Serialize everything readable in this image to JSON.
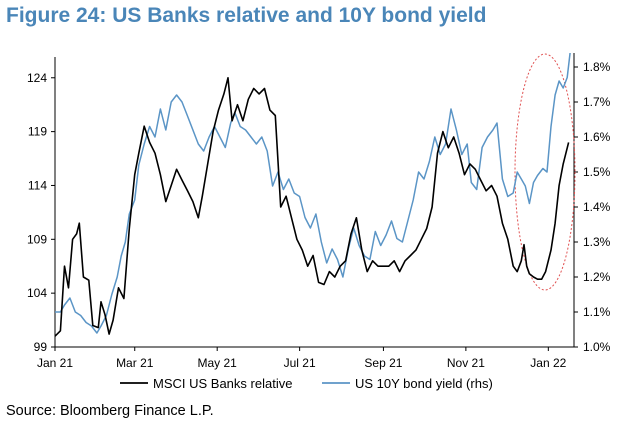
{
  "figure_title": "Figure 24: US Banks relative and 10Y bond yield",
  "source": "Source: Bloomberg Finance L.P.",
  "colors": {
    "title": "#4a86b8",
    "banks": "#000000",
    "yield": "#5b95c6",
    "highlight": "#e05050"
  },
  "chart_data": {
    "type": "line",
    "title": "Figure 24: US Banks relative and 10Y bond yield",
    "x_tick_labels": [
      "Jan 21",
      "Mar 21",
      "May 21",
      "Jul 21",
      "Sep 21",
      "Nov 21",
      "Jan 22"
    ],
    "x_tick_dates": [
      "2021-01-01",
      "2021-03-01",
      "2021-05-01",
      "2021-07-01",
      "2021-09-01",
      "2021-11-01",
      "2022-01-01"
    ],
    "x_range": [
      "2021-01-01",
      "2022-01-20"
    ],
    "y_left": {
      "ticks": [
        99,
        104,
        109,
        114,
        119,
        124
      ],
      "range": [
        99,
        125
      ]
    },
    "y_right": {
      "ticks": [
        "1.0%",
        "1.1%",
        "1.2%",
        "1.3%",
        "1.4%",
        "1.5%",
        "1.6%",
        "1.7%",
        "1.8%"
      ],
      "range": [
        1.0,
        1.8
      ]
    },
    "grid": false,
    "legend_position": "bottom",
    "annotations": "red dotted ellipse around Dec 21 – Jan 22 move",
    "series": [
      {
        "name": "MSCI US Banks relative",
        "axis": "left",
        "color": "#000000",
        "points": [
          [
            "2021-01-01",
            100.0
          ],
          [
            "2021-01-05",
            100.5
          ],
          [
            "2021-01-08",
            106.5
          ],
          [
            "2021-01-11",
            104.5
          ],
          [
            "2021-01-14",
            109.0
          ],
          [
            "2021-01-17",
            109.5
          ],
          [
            "2021-01-19",
            110.5
          ],
          [
            "2021-01-22",
            105.5
          ],
          [
            "2021-01-26",
            105.2
          ],
          [
            "2021-01-29",
            101.0
          ],
          [
            "2021-02-02",
            100.8
          ],
          [
            "2021-02-04",
            103.2
          ],
          [
            "2021-02-07",
            102.0
          ],
          [
            "2021-02-10",
            100.2
          ],
          [
            "2021-02-13",
            101.5
          ],
          [
            "2021-02-17",
            104.5
          ],
          [
            "2021-02-21",
            103.5
          ],
          [
            "2021-02-25",
            110.0
          ],
          [
            "2021-03-01",
            115.0
          ],
          [
            "2021-03-04",
            117.0
          ],
          [
            "2021-03-08",
            119.5
          ],
          [
            "2021-03-12",
            118.0
          ],
          [
            "2021-03-16",
            117.0
          ],
          [
            "2021-03-20",
            115.0
          ],
          [
            "2021-03-24",
            112.5
          ],
          [
            "2021-03-28",
            114.0
          ],
          [
            "2021-04-01",
            115.5
          ],
          [
            "2021-04-05",
            114.5
          ],
          [
            "2021-04-09",
            113.5
          ],
          [
            "2021-04-13",
            112.5
          ],
          [
            "2021-04-17",
            111.0
          ],
          [
            "2021-04-20",
            113.0
          ],
          [
            "2021-04-24",
            116.0
          ],
          [
            "2021-04-28",
            119.0
          ],
          [
            "2021-05-02",
            121.0
          ],
          [
            "2021-05-06",
            122.5
          ],
          [
            "2021-05-09",
            124.0
          ],
          [
            "2021-05-12",
            120.0
          ],
          [
            "2021-05-16",
            121.5
          ],
          [
            "2021-05-20",
            120.0
          ],
          [
            "2021-05-24",
            122.0
          ],
          [
            "2021-05-28",
            123.0
          ],
          [
            "2021-06-01",
            122.5
          ],
          [
            "2021-06-05",
            123.0
          ],
          [
            "2021-06-09",
            121.0
          ],
          [
            "2021-06-13",
            120.5
          ],
          [
            "2021-06-17",
            112.0
          ],
          [
            "2021-06-21",
            113.0
          ],
          [
            "2021-06-25",
            111.0
          ],
          [
            "2021-06-29",
            109.0
          ],
          [
            "2021-07-03",
            108.0
          ],
          [
            "2021-07-07",
            106.5
          ],
          [
            "2021-07-11",
            107.5
          ],
          [
            "2021-07-15",
            105.0
          ],
          [
            "2021-07-19",
            104.8
          ],
          [
            "2021-07-23",
            106.0
          ],
          [
            "2021-07-27",
            105.5
          ],
          [
            "2021-07-31",
            106.5
          ],
          [
            "2021-08-04",
            107.0
          ],
          [
            "2021-08-08",
            109.5
          ],
          [
            "2021-08-12",
            111.0
          ],
          [
            "2021-08-16",
            108.0
          ],
          [
            "2021-08-20",
            106.0
          ],
          [
            "2021-08-24",
            107.0
          ],
          [
            "2021-08-28",
            106.5
          ],
          [
            "2021-09-01",
            106.5
          ],
          [
            "2021-09-05",
            106.5
          ],
          [
            "2021-09-09",
            107.0
          ],
          [
            "2021-09-13",
            106.0
          ],
          [
            "2021-09-17",
            107.0
          ],
          [
            "2021-09-21",
            107.5
          ],
          [
            "2021-09-25",
            108.0
          ],
          [
            "2021-09-29",
            109.0
          ],
          [
            "2021-10-03",
            110.0
          ],
          [
            "2021-10-07",
            112.0
          ],
          [
            "2021-10-11",
            117.0
          ],
          [
            "2021-10-15",
            119.0
          ],
          [
            "2021-10-19",
            117.5
          ],
          [
            "2021-10-23",
            118.5
          ],
          [
            "2021-10-27",
            117.0
          ],
          [
            "2021-10-31",
            115.0
          ],
          [
            "2021-11-04",
            116.0
          ],
          [
            "2021-11-08",
            115.5
          ],
          [
            "2021-11-12",
            114.5
          ],
          [
            "2021-11-16",
            113.5
          ],
          [
            "2021-11-20",
            114.0
          ],
          [
            "2021-11-24",
            113.0
          ],
          [
            "2021-11-28",
            110.5
          ],
          [
            "2021-12-02",
            109.0
          ],
          [
            "2021-12-06",
            106.5
          ],
          [
            "2021-12-09",
            106.0
          ],
          [
            "2021-12-12",
            107.0
          ],
          [
            "2021-12-14",
            108.5
          ],
          [
            "2021-12-16",
            106.5
          ],
          [
            "2021-12-18",
            105.8
          ],
          [
            "2021-12-21",
            105.5
          ],
          [
            "2021-12-24",
            105.3
          ],
          [
            "2021-12-27",
            105.3
          ],
          [
            "2021-12-30",
            106.0
          ],
          [
            "2022-01-03",
            108.0
          ],
          [
            "2022-01-06",
            110.5
          ],
          [
            "2022-01-09",
            114.0
          ],
          [
            "2022-01-12",
            116.0
          ],
          [
            "2022-01-14",
            117.0
          ],
          [
            "2022-01-16",
            118.0
          ]
        ]
      },
      {
        "name": "US 10Y bond yield (rhs)",
        "axis": "right",
        "color": "#5b95c6",
        "points": [
          [
            "2021-01-01",
            1.1
          ],
          [
            "2021-01-05",
            1.1
          ],
          [
            "2021-01-08",
            1.12
          ],
          [
            "2021-01-12",
            1.14
          ],
          [
            "2021-01-16",
            1.1
          ],
          [
            "2021-01-20",
            1.09
          ],
          [
            "2021-01-24",
            1.07
          ],
          [
            "2021-01-28",
            1.06
          ],
          [
            "2021-02-01",
            1.04
          ],
          [
            "2021-02-04",
            1.06
          ],
          [
            "2021-02-08",
            1.09
          ],
          [
            "2021-02-12",
            1.15
          ],
          [
            "2021-02-16",
            1.2
          ],
          [
            "2021-02-19",
            1.26
          ],
          [
            "2021-02-22",
            1.3
          ],
          [
            "2021-02-25",
            1.38
          ],
          [
            "2021-03-01",
            1.42
          ],
          [
            "2021-03-04",
            1.52
          ],
          [
            "2021-03-08",
            1.58
          ],
          [
            "2021-03-12",
            1.63
          ],
          [
            "2021-03-16",
            1.6
          ],
          [
            "2021-03-20",
            1.68
          ],
          [
            "2021-03-24",
            1.62
          ],
          [
            "2021-03-28",
            1.7
          ],
          [
            "2021-04-01",
            1.72
          ],
          [
            "2021-04-05",
            1.7
          ],
          [
            "2021-04-09",
            1.66
          ],
          [
            "2021-04-13",
            1.62
          ],
          [
            "2021-04-17",
            1.58
          ],
          [
            "2021-04-21",
            1.56
          ],
          [
            "2021-04-25",
            1.6
          ],
          [
            "2021-04-29",
            1.63
          ],
          [
            "2021-05-03",
            1.6
          ],
          [
            "2021-05-07",
            1.57
          ],
          [
            "2021-05-11",
            1.64
          ],
          [
            "2021-05-14",
            1.67
          ],
          [
            "2021-05-18",
            1.63
          ],
          [
            "2021-05-22",
            1.62
          ],
          [
            "2021-05-26",
            1.6
          ],
          [
            "2021-05-30",
            1.58
          ],
          [
            "2021-06-03",
            1.6
          ],
          [
            "2021-06-07",
            1.56
          ],
          [
            "2021-06-11",
            1.46
          ],
          [
            "2021-06-15",
            1.5
          ],
          [
            "2021-06-19",
            1.45
          ],
          [
            "2021-06-23",
            1.48
          ],
          [
            "2021-06-27",
            1.44
          ],
          [
            "2021-07-01",
            1.43
          ],
          [
            "2021-07-05",
            1.37
          ],
          [
            "2021-07-09",
            1.34
          ],
          [
            "2021-07-13",
            1.38
          ],
          [
            "2021-07-17",
            1.3
          ],
          [
            "2021-07-21",
            1.24
          ],
          [
            "2021-07-25",
            1.28
          ],
          [
            "2021-07-29",
            1.25
          ],
          [
            "2021-08-02",
            1.2
          ],
          [
            "2021-08-06",
            1.28
          ],
          [
            "2021-08-10",
            1.34
          ],
          [
            "2021-08-14",
            1.29
          ],
          [
            "2021-08-18",
            1.26
          ],
          [
            "2021-08-22",
            1.25
          ],
          [
            "2021-08-26",
            1.33
          ],
          [
            "2021-08-30",
            1.29
          ],
          [
            "2021-09-03",
            1.32
          ],
          [
            "2021-09-07",
            1.36
          ],
          [
            "2021-09-11",
            1.31
          ],
          [
            "2021-09-15",
            1.3
          ],
          [
            "2021-09-19",
            1.36
          ],
          [
            "2021-09-23",
            1.42
          ],
          [
            "2021-09-27",
            1.5
          ],
          [
            "2021-10-01",
            1.48
          ],
          [
            "2021-10-05",
            1.53
          ],
          [
            "2021-10-09",
            1.6
          ],
          [
            "2021-10-13",
            1.55
          ],
          [
            "2021-10-17",
            1.58
          ],
          [
            "2021-10-21",
            1.68
          ],
          [
            "2021-10-25",
            1.62
          ],
          [
            "2021-10-29",
            1.55
          ],
          [
            "2021-11-02",
            1.58
          ],
          [
            "2021-11-05",
            1.47
          ],
          [
            "2021-11-09",
            1.45
          ],
          [
            "2021-11-13",
            1.57
          ],
          [
            "2021-11-17",
            1.6
          ],
          [
            "2021-11-21",
            1.62
          ],
          [
            "2021-11-24",
            1.64
          ],
          [
            "2021-11-28",
            1.48
          ],
          [
            "2021-12-02",
            1.43
          ],
          [
            "2021-12-06",
            1.44
          ],
          [
            "2021-12-09",
            1.5
          ],
          [
            "2021-12-12",
            1.48
          ],
          [
            "2021-12-15",
            1.46
          ],
          [
            "2021-12-18",
            1.41
          ],
          [
            "2021-12-21",
            1.47
          ],
          [
            "2021-12-24",
            1.49
          ],
          [
            "2021-12-28",
            1.51
          ],
          [
            "2021-12-31",
            1.5
          ],
          [
            "2022-01-03",
            1.63
          ],
          [
            "2022-01-06",
            1.72
          ],
          [
            "2022-01-09",
            1.76
          ],
          [
            "2022-01-12",
            1.74
          ],
          [
            "2022-01-15",
            1.77
          ],
          [
            "2022-01-18",
            1.87
          ]
        ]
      }
    ]
  }
}
